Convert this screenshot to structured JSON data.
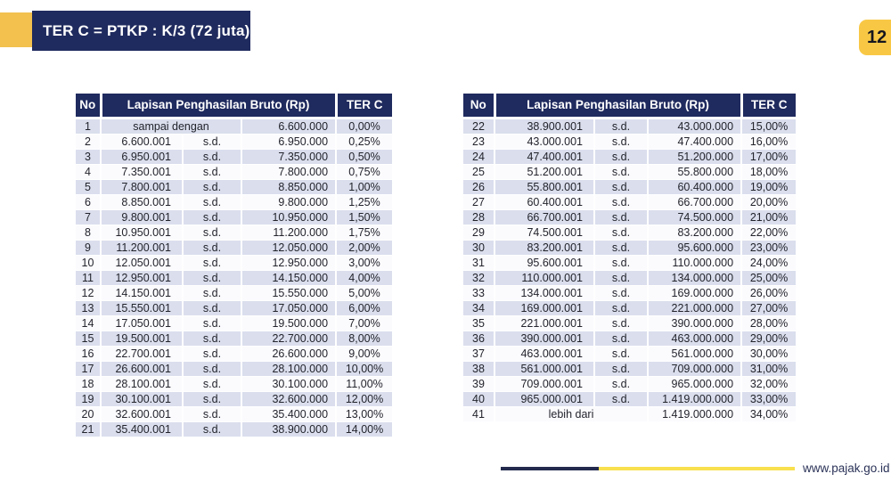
{
  "header": {
    "title": "TER C = PTKP : K/3 (72 juta)",
    "page_number": "12"
  },
  "table": {
    "columns": {
      "no": "No",
      "bracket": "Lapisan Penghasilan Bruto (Rp)",
      "rate": "TER C"
    },
    "left_rows": [
      [
        "1",
        "sampai dengan",
        null,
        "6.600.000",
        "0,00%"
      ],
      [
        "2",
        "6.600.001",
        "s.d.",
        "6.950.000",
        "0,25%"
      ],
      [
        "3",
        "6.950.001",
        "s.d.",
        "7.350.000",
        "0,50%"
      ],
      [
        "4",
        "7.350.001",
        "s.d.",
        "7.800.000",
        "0,75%"
      ],
      [
        "5",
        "7.800.001",
        "s.d.",
        "8.850.000",
        "1,00%"
      ],
      [
        "6",
        "8.850.001",
        "s.d.",
        "9.800.000",
        "1,25%"
      ],
      [
        "7",
        "9.800.001",
        "s.d.",
        "10.950.000",
        "1,50%"
      ],
      [
        "8",
        "10.950.001",
        "s.d.",
        "11.200.000",
        "1,75%"
      ],
      [
        "9",
        "11.200.001",
        "s.d.",
        "12.050.000",
        "2,00%"
      ],
      [
        "10",
        "12.050.001",
        "s.d.",
        "12.950.000",
        "3,00%"
      ],
      [
        "11",
        "12.950.001",
        "s.d.",
        "14.150.000",
        "4,00%"
      ],
      [
        "12",
        "14.150.001",
        "s.d.",
        "15.550.000",
        "5,00%"
      ],
      [
        "13",
        "15.550.001",
        "s.d.",
        "17.050.000",
        "6,00%"
      ],
      [
        "14",
        "17.050.001",
        "s.d.",
        "19.500.000",
        "7,00%"
      ],
      [
        "15",
        "19.500.001",
        "s.d.",
        "22.700.000",
        "8,00%"
      ],
      [
        "16",
        "22.700.001",
        "s.d.",
        "26.600.000",
        "9,00%"
      ],
      [
        "17",
        "26.600.001",
        "s.d.",
        "28.100.000",
        "10,00%"
      ],
      [
        "18",
        "28.100.001",
        "s.d.",
        "30.100.000",
        "11,00%"
      ],
      [
        "19",
        "30.100.001",
        "s.d.",
        "32.600.000",
        "12,00%"
      ],
      [
        "20",
        "32.600.001",
        "s.d.",
        "35.400.000",
        "13,00%"
      ],
      [
        "21",
        "35.400.001",
        "s.d.",
        "38.900.000",
        "14,00%"
      ]
    ],
    "right_rows": [
      [
        "22",
        "38.900.001",
        "s.d.",
        "43.000.000",
        "15,00%"
      ],
      [
        "23",
        "43.000.001",
        "s.d.",
        "47.400.000",
        "16,00%"
      ],
      [
        "24",
        "47.400.001",
        "s.d.",
        "51.200.000",
        "17,00%"
      ],
      [
        "25",
        "51.200.001",
        "s.d.",
        "55.800.000",
        "18,00%"
      ],
      [
        "26",
        "55.800.001",
        "s.d.",
        "60.400.000",
        "19,00%"
      ],
      [
        "27",
        "60.400.001",
        "s.d.",
        "66.700.000",
        "20,00%"
      ],
      [
        "28",
        "66.700.001",
        "s.d.",
        "74.500.000",
        "21,00%"
      ],
      [
        "29",
        "74.500.001",
        "s.d.",
        "83.200.000",
        "22,00%"
      ],
      [
        "30",
        "83.200.001",
        "s.d.",
        "95.600.000",
        "23,00%"
      ],
      [
        "31",
        "95.600.001",
        "s.d.",
        "110.000.000",
        "24,00%"
      ],
      [
        "32",
        "110.000.001",
        "s.d.",
        "134.000.000",
        "25,00%"
      ],
      [
        "33",
        "134.000.001",
        "s.d.",
        "169.000.000",
        "26,00%"
      ],
      [
        "34",
        "169.000.001",
        "s.d.",
        "221.000.000",
        "27,00%"
      ],
      [
        "35",
        "221.000.001",
        "s.d.",
        "390.000.000",
        "28,00%"
      ],
      [
        "36",
        "390.000.001",
        "s.d.",
        "463.000.000",
        "29,00%"
      ],
      [
        "37",
        "463.000.001",
        "s.d.",
        "561.000.000",
        "30,00%"
      ],
      [
        "38",
        "561.000.001",
        "s.d.",
        "709.000.000",
        "31,00%"
      ],
      [
        "39",
        "709.000.001",
        "s.d.",
        "965.000.000",
        "32,00%"
      ],
      [
        "40",
        "965.000.001",
        "s.d.",
        "1.419.000.000",
        "33,00%"
      ],
      [
        "41",
        "lebih dari",
        null,
        "1.419.000.000",
        "34,00%"
      ]
    ]
  },
  "footer": {
    "website": "www.pajak.go.id"
  },
  "colors": {
    "navy": "#1f2a5e",
    "gold": "#f2c14e",
    "badge_gold": "#f8c845",
    "row_shaded": "#dadeed",
    "row_light": "#fbfbfe",
    "footer_navy": "#232a4d",
    "footer_yellow": "#f8e04e"
  }
}
